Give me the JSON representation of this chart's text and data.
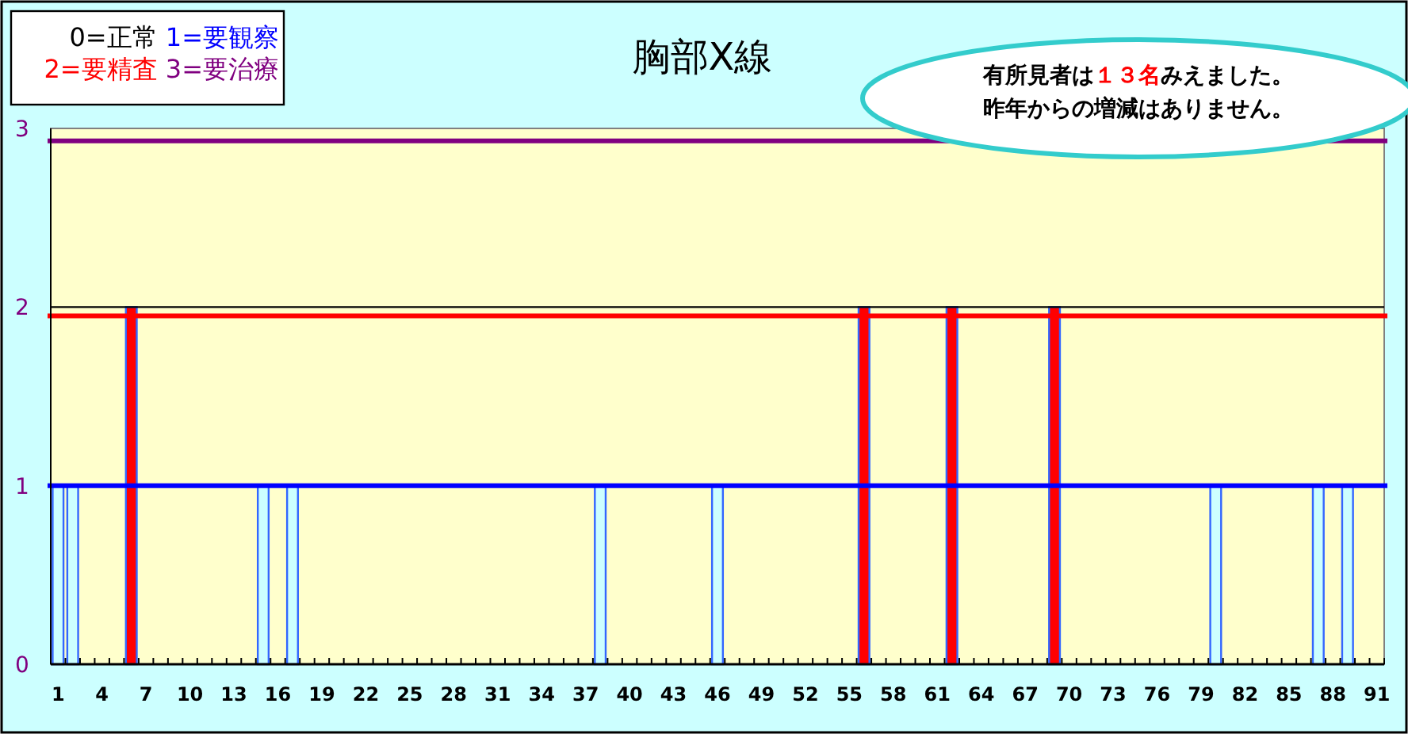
{
  "chart_data": {
    "type": "bar",
    "title": "胸部X線",
    "annotations": [
      "0=正常",
      "1=要観察",
      "2=要精査",
      "3=要治療",
      "有所見者は１３名みえました。",
      "昨年からの増減はありません。"
    ],
    "categories": [
      "1",
      null,
      null,
      "4",
      null,
      null,
      "7",
      null,
      null,
      "10",
      null,
      null,
      "13",
      null,
      null,
      "16",
      null,
      null,
      "19",
      null,
      null,
      "22",
      null,
      null,
      "25",
      null,
      null,
      "28",
      null,
      null,
      "31",
      null,
      null,
      "34",
      null,
      null,
      "37",
      null,
      null,
      "40",
      null,
      null,
      "43",
      null,
      null,
      "46",
      null,
      null,
      "49",
      null,
      null,
      "52",
      null,
      null,
      "55",
      null,
      null,
      "58",
      null,
      null,
      "61",
      null,
      null,
      "64",
      null,
      null,
      "67",
      null,
      null,
      "70",
      null,
      null,
      "73",
      null,
      null,
      "76",
      null,
      null,
      "79",
      null,
      null,
      "82",
      null,
      null,
      "85",
      null,
      null,
      "88",
      null,
      null,
      "91"
    ],
    "values": [
      1,
      1,
      0,
      0,
      0,
      2,
      0,
      0,
      0,
      0,
      0,
      0,
      0,
      0,
      1,
      0,
      1,
      0,
      0,
      0,
      0,
      0,
      0,
      0,
      0,
      0,
      0,
      0,
      0,
      0,
      0,
      0,
      0,
      0,
      0,
      0,
      0,
      1,
      0,
      0,
      0,
      0,
      0,
      0,
      0,
      1,
      0,
      0,
      0,
      0,
      0,
      0,
      0,
      0,
      0,
      2,
      0,
      0,
      0,
      0,
      0,
      2,
      0,
      0,
      0,
      0,
      0,
      0,
      2,
      0,
      0,
      0,
      0,
      0,
      0,
      0,
      0,
      0,
      0,
      1,
      0,
      0,
      0,
      0,
      0,
      0,
      1,
      0,
      1,
      0,
      0
    ],
    "colors": [
      "#ccffff",
      "#ccffff",
      "#ccffff",
      "#ccffff",
      "#ccffff",
      "#ff0000",
      "#ccffff",
      "#ccffff",
      "#ccffff",
      "#ccffff",
      "#ccffff",
      "#ccffff",
      "#ccffff",
      "#ccffff",
      "#ccffff",
      "#ccffff",
      "#ccffff",
      "#ccffff",
      "#ccffff",
      "#ccffff",
      "#ccffff",
      "#ccffff",
      "#ccffff",
      "#ccffff",
      "#ccffff",
      "#ccffff",
      "#ccffff",
      "#ccffff",
      "#ccffff",
      "#ccffff",
      "#ccffff",
      "#ccffff",
      "#ccffff",
      "#ccffff",
      "#ccffff",
      "#ccffff",
      "#ccffff",
      "#ccffff",
      "#ccffff",
      "#ccffff",
      "#ccffff",
      "#ccffff",
      "#ccffff",
      "#ccffff",
      "#ccffff",
      "#ccffff",
      "#ccffff",
      "#ccffff",
      "#ccffff",
      "#ccffff",
      "#ccffff",
      "#ccffff",
      "#ccffff",
      "#ccffff",
      "#ccffff",
      "#ff0000",
      "#ccffff",
      "#ccffff",
      "#ccffff",
      "#ccffff",
      "#ccffff",
      "#ff0000",
      "#ccffff",
      "#ccffff",
      "#ccffff",
      "#ccffff",
      "#ccffff",
      "#ccffff",
      "#ff0000",
      "#ccffff",
      "#ccffff",
      "#ccffff",
      "#ccffff",
      "#ccffff",
      "#ccffff",
      "#ccffff",
      "#ccffff",
      "#ccffff",
      "#ccffff",
      "#ccffff",
      "#ccffff",
      "#ccffff",
      "#ccffff",
      "#ccffff",
      "#ccffff",
      "#ccffff",
      "#ccffff",
      "#ccffff",
      "#ccffff",
      "#ccffff",
      "#ccffff"
    ],
    "ylim": [
      0,
      3
    ],
    "yticks": [
      0,
      1,
      2,
      3
    ],
    "ref_lines": [
      {
        "axis": "y",
        "value": 2,
        "color": "#000000"
      },
      {
        "axis": "y",
        "value": 1,
        "color": "#0000ff"
      },
      {
        "axis": "y",
        "value": 1.95,
        "color": "#ff0000"
      },
      {
        "axis": "y",
        "value": 2.93,
        "color": "#800080"
      }
    ]
  }
}
